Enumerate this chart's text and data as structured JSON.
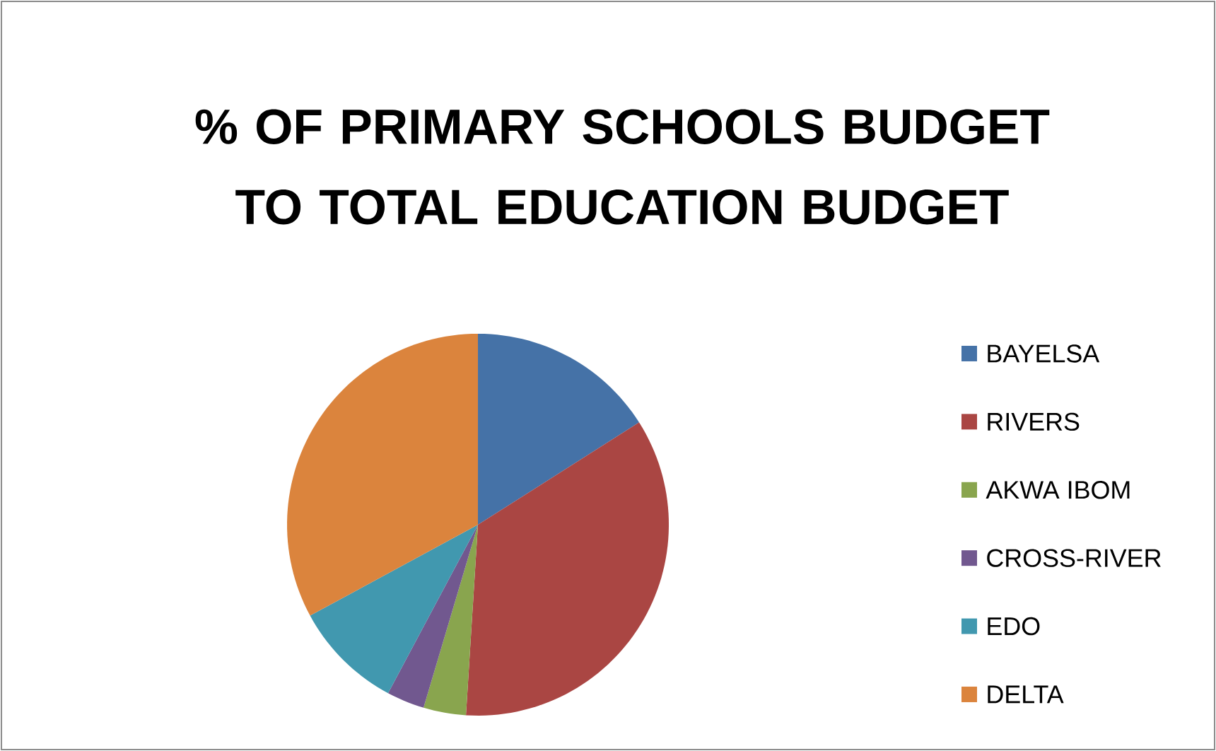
{
  "chart_data": {
    "type": "pie",
    "title": "% OF PRIMARY SCHOOLS BUDGET TO TOTAL EDUCATION BUDGET",
    "categories": [
      "BAYELSA",
      "RIVERS",
      "AKWA IBOM",
      "CROSS-RIVER",
      "EDO",
      "DELTA"
    ],
    "values": [
      16,
      35,
      3.6,
      3.2,
      9.3,
      32.9
    ],
    "colors": [
      "#4572a7",
      "#aa4643",
      "#89a54e",
      "#71588f",
      "#4198af",
      "#db843d"
    ],
    "legend": "right"
  }
}
